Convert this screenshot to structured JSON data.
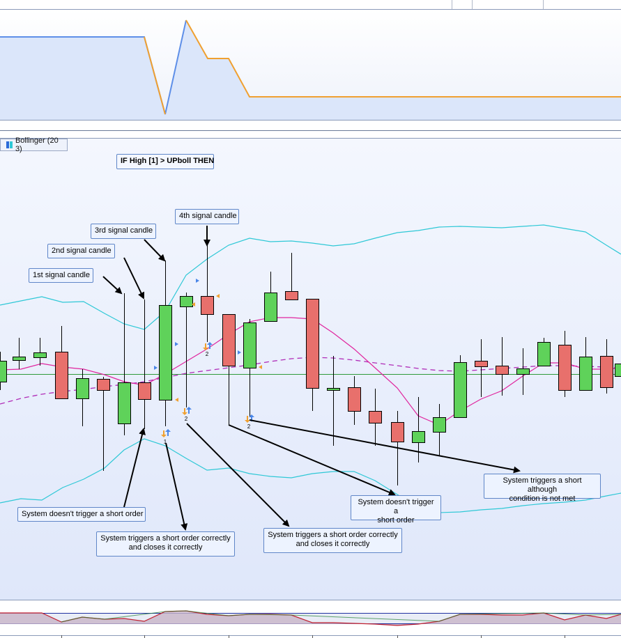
{
  "colors": {
    "bull_candle": "#5fd25a",
    "bear_candle": "#e8706c",
    "bollinger_band": "#2ec8d6",
    "bollinger_mid": "#e0259e",
    "moving_avg_dashed": "#b02cb8",
    "horizontal_line": "#2e9a3a",
    "indicator_blue": "#5e8fe8",
    "indicator_orange": "#f0a030",
    "buy_arrow": "#4a86e8",
    "sell_arrow": "#f0a030"
  },
  "legend": {
    "label": "Bollinger (20 3)"
  },
  "annotations": {
    "condition": "IF High [1] > UPboll THEN",
    "signal_1": "1st signal candle",
    "signal_2": "2nd signal candle",
    "signal_3": "3rd signal candle",
    "signal_4": "4th signal candle",
    "no_trigger_1": "System doesn't trigger a short order",
    "trigger_correct_1": "System triggers a short order correctly\nand closes it correctly",
    "trigger_correct_2": "System triggers a short order correctly\nand closes it correctly",
    "no_trigger_2": "System doesn't trigger a\nshort order",
    "trigger_not_met": "System triggers a short although\ncondition is not met"
  },
  "trade_markers": {
    "marker_1": "1",
    "marker_2": "2",
    "marker_3": "2",
    "marker_4": "2"
  }
}
